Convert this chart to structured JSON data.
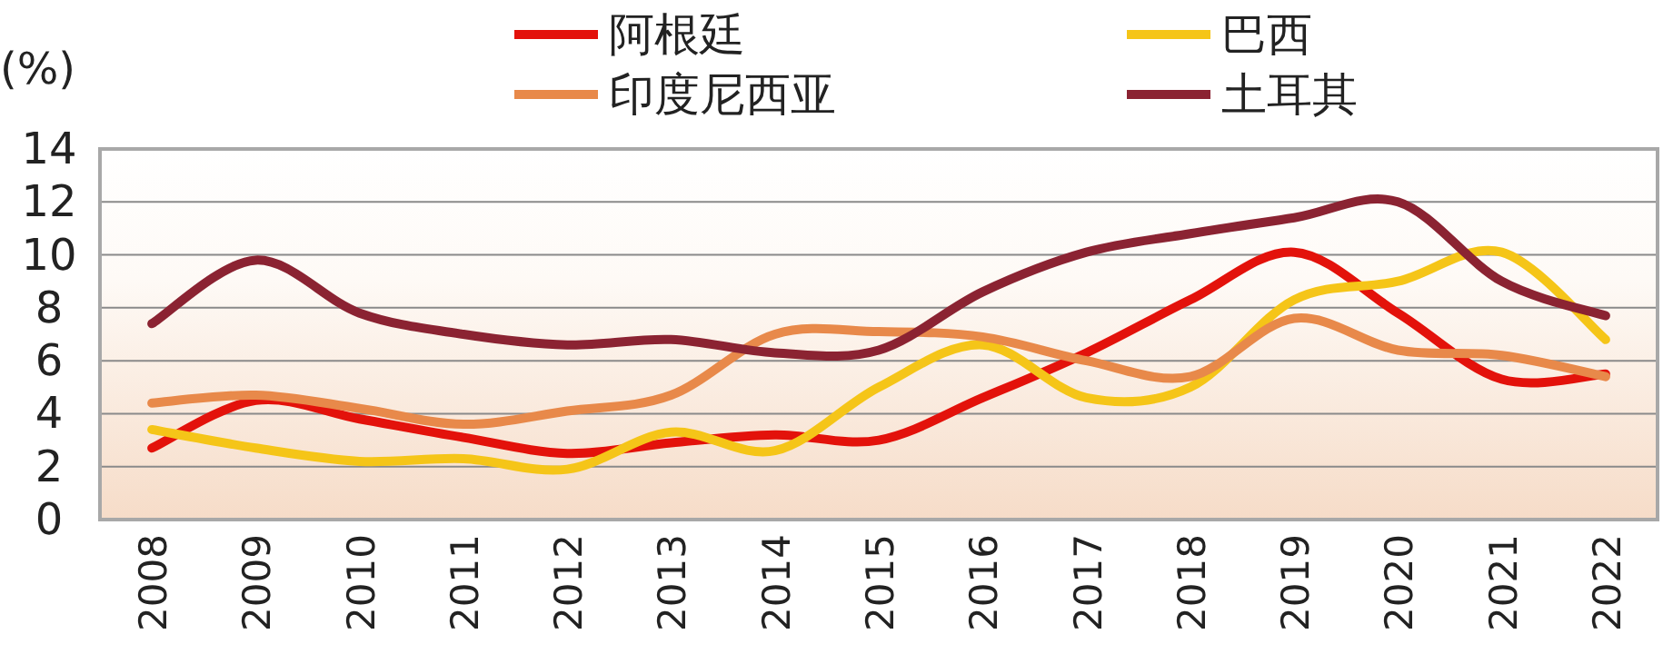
{
  "chart_data": {
    "type": "line",
    "ylabel": "(%)",
    "categories": [
      "2008",
      "2009",
      "2010",
      "2011",
      "2012",
      "2013",
      "2014",
      "2015",
      "2016",
      "2017",
      "2018",
      "2019",
      "2020",
      "2021",
      "2022"
    ],
    "series": [
      {
        "name": "阿根廷",
        "color": "#e3120b",
        "values": [
          2.7,
          4.5,
          3.8,
          3.1,
          2.5,
          2.9,
          3.2,
          3.0,
          4.6,
          6.3,
          8.3,
          10.1,
          7.8,
          5.3,
          5.5
        ]
      },
      {
        "name": "巴西",
        "color": "#f5c518",
        "values": [
          3.4,
          2.7,
          2.2,
          2.3,
          1.9,
          3.3,
          2.6,
          5.0,
          6.6,
          4.6,
          5.0,
          8.3,
          9.0,
          10.1,
          6.8
        ]
      },
      {
        "name": "印度尼西亚",
        "color": "#e8894a",
        "values": [
          4.4,
          4.7,
          4.2,
          3.6,
          4.1,
          4.7,
          7.0,
          7.1,
          6.9,
          6.0,
          5.4,
          7.6,
          6.4,
          6.2,
          5.4
        ]
      },
      {
        "name": "土耳其",
        "color": "#8b2332",
        "values": [
          7.4,
          9.8,
          7.8,
          7.0,
          6.6,
          6.8,
          6.3,
          6.4,
          8.6,
          10.1,
          10.8,
          11.4,
          12.0,
          9.0,
          7.7
        ]
      }
    ],
    "ylim": [
      0,
      14
    ],
    "yticks": [
      0,
      2,
      4,
      6,
      8,
      10,
      12,
      14
    ],
    "grid": "y",
    "legend": "top"
  }
}
